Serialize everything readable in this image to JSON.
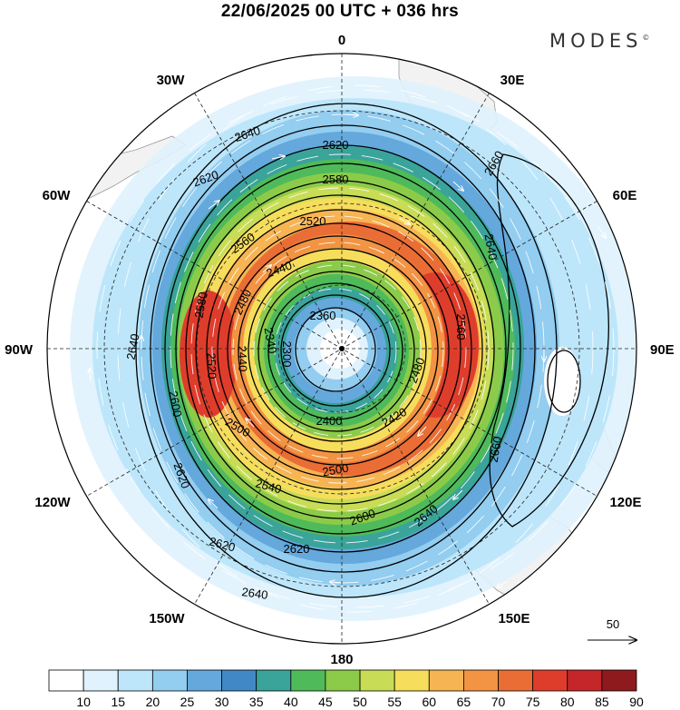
{
  "header": {
    "title": "22/06/2025  00 UTC  + 036 hrs",
    "brand": "MODES",
    "brand_mark": "©"
  },
  "map": {
    "projection": "south-polar-stereographic",
    "longitude_labels": [
      "0",
      "30E",
      "60E",
      "90E",
      "120E",
      "150E",
      "180",
      "150W",
      "120W",
      "90W",
      "60W",
      "30W"
    ],
    "contour_labels": [
      "2640",
      "2620",
      "2580",
      "2520",
      "2440",
      "2360",
      "2660",
      "2640",
      "2620",
      "2580",
      "2560",
      "2480",
      "2520",
      "2440",
      "2340",
      "2300",
      "2640",
      "2600",
      "2400",
      "2420",
      "2480",
      "2500",
      "2540",
      "2500",
      "2620",
      "2640",
      "2600",
      "2660",
      "2620",
      "2620",
      "2640",
      "2560"
    ],
    "wind_reference_vector": "50"
  },
  "colorbar": {
    "ticks": [
      "10",
      "15",
      "20",
      "25",
      "30",
      "35",
      "40",
      "45",
      "50",
      "55",
      "60",
      "65",
      "70",
      "75",
      "80",
      "85",
      "90"
    ],
    "colors": [
      "#ffffff",
      "#dff2fd",
      "#bde6fa",
      "#93cdf0",
      "#64a8dc",
      "#4089c6",
      "#3aa39a",
      "#4fba5a",
      "#8ccb4a",
      "#c8dc55",
      "#f6dd5c",
      "#f7b453",
      "#f29443",
      "#ea6d35",
      "#df3d2c",
      "#c4262a",
      "#8f1a1e"
    ]
  }
}
